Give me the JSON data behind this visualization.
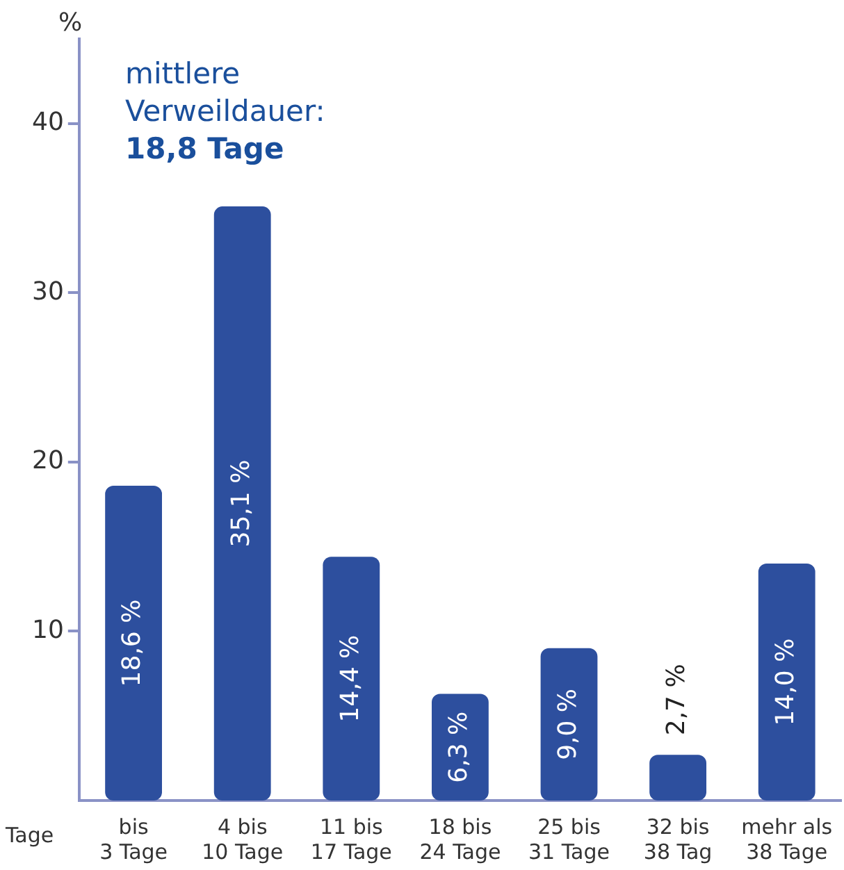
{
  "chart_data": {
    "type": "bar",
    "xlabel": "Tage",
    "ylabel": "%",
    "categories": [
      "bis\n3 Tage",
      "4 bis\n10 Tage",
      "11 bis\n17 Tage",
      "18 bis\n24 Tage",
      "25 bis\n31 Tage",
      "32 bis\n38 Tag",
      "mehr als\n38 Tage"
    ],
    "values": [
      18.6,
      35.1,
      14.4,
      6.3,
      9.0,
      2.7,
      14.0
    ],
    "value_labels": [
      "18,6 %",
      "35,1 %",
      "14,4 %",
      "6,3 %",
      "9,0 %",
      "2,7 %",
      "14,0 %"
    ],
    "color": "#2d4f9e",
    "ylim": [
      0,
      45
    ],
    "yticks": [
      10,
      20,
      30,
      40
    ],
    "grid": false,
    "legend": false,
    "annotations": [
      "mittlere\nVerweildauer:",
      "18,8 Tage"
    ]
  }
}
